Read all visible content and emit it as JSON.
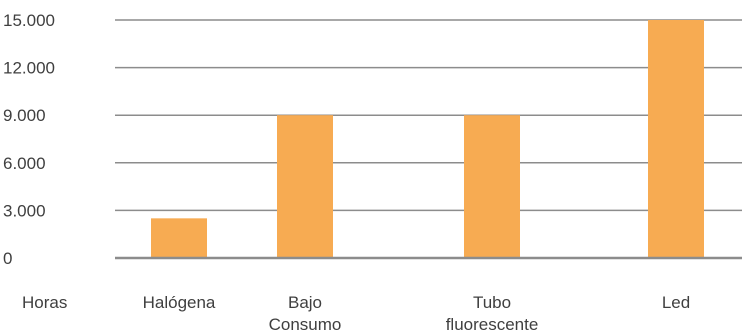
{
  "chart_data": {
    "type": "bar",
    "row_label": "Horas",
    "categories": [
      [
        "Halógena"
      ],
      [
        "Bajo",
        "Consumo"
      ],
      [
        "Tubo",
        "fluorescente"
      ],
      [
        "Led"
      ]
    ],
    "values": [
      2500,
      9000,
      9000,
      15000
    ],
    "y_ticks": [
      "0",
      "3.000",
      "6.000",
      "9.000",
      "12.000",
      "15.000"
    ],
    "y_tick_values": [
      0,
      3000,
      6000,
      9000,
      12000,
      15000
    ],
    "ylim": [
      0,
      15000
    ],
    "grid": true,
    "bar_color": "#F7AB52",
    "grid_color": "#8c8c8c",
    "text_color": "#3f3f3f"
  }
}
